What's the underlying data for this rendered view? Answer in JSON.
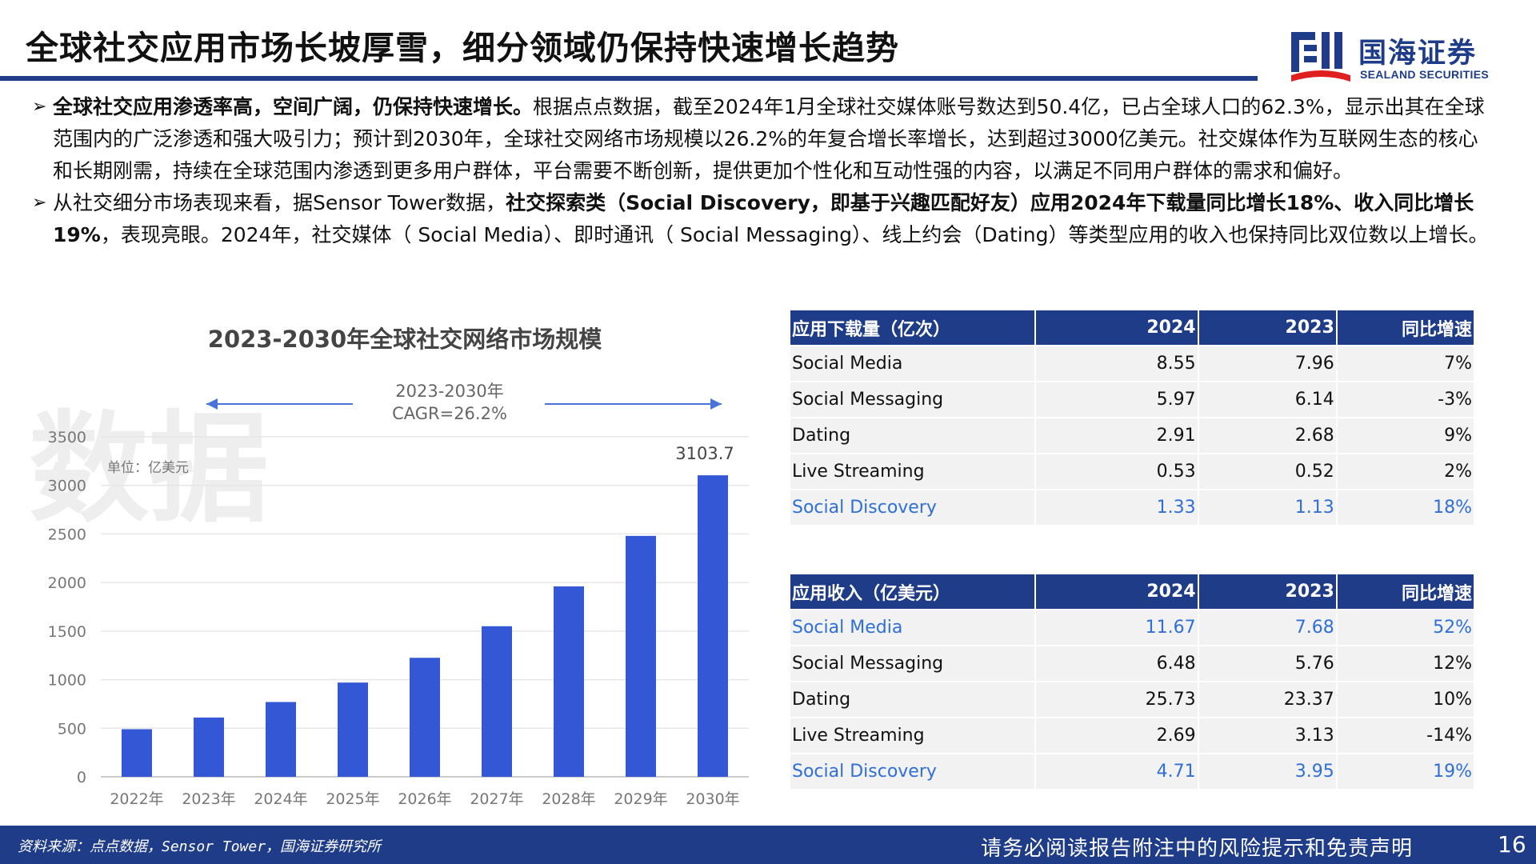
{
  "header": {
    "title": "全球社交应用市场长坡厚雪，细分领域仍保持快速增长趋势",
    "logo_cn": "国海证券",
    "logo_en": "SEALAND SECURITIES",
    "brand_color": "#1f3c88"
  },
  "bullets": [
    {
      "lead": "全球社交应用渗透率高，空间广阔，仍保持快速增长。",
      "text1": "根据点点数据，截至2024年1月全球社交媒体账号数达到50.4亿，已占全球人口的62.3%，显示出其在全球范围内的广泛渗透和强大吸引力；预计到2030年，全球社交网络市场规模以26.2%的年复合增长率增长，达到超过3000亿美元。社交媒体作为互联网生态的核心和长期刚需，持续在全球范围内渗透到更多用户群体，平台需要不断创新，提供更加个性化和互动性强的内容，以满足不同用户群体的需求和偏好。"
    },
    {
      "pre": "从社交细分市场表现来看，据Sensor Tower数据，",
      "bold": "社交探索类（Social Discovery，即基于兴趣匹配好友）应用2024年下载量同比增长18%、收入同比增长19%",
      "post": "，表现亮眼。2024年，社交媒体（ Social Media）、即时通讯（ Social Messaging）、线上约会（Dating）等类型应用的收入也保持同比双位数以上增长。"
    }
  ],
  "chart_data": {
    "type": "bar",
    "title": "2023-2030年全球社交网络市场规模",
    "unit_label": "单位：亿美元",
    "watermark": "数据",
    "cagr_period": "2023-2030年",
    "cagr_label": "CAGR=26.2%",
    "categories": [
      "2022年",
      "2023年",
      "2024年",
      "2025年",
      "2026年",
      "2027年",
      "2028年",
      "2029年",
      "2030年"
    ],
    "values": [
      490,
      610,
      770,
      970,
      1225,
      1550,
      1960,
      2480,
      3103.7
    ],
    "data_labels": {
      "8": "3103.7"
    },
    "yticks": [
      0,
      500,
      1000,
      1500,
      2000,
      2500,
      3000,
      3500
    ],
    "ylim": [
      0,
      3500
    ],
    "bar_color": "#3457d5",
    "grid": true
  },
  "table_downloads": {
    "headers": [
      "应用下载量（亿次）",
      "2024",
      "2023",
      "同比增速"
    ],
    "rows": [
      {
        "name": "Social Media",
        "v2024": "8.55",
        "v2023": "7.96",
        "yoy": "7%",
        "highlight": false
      },
      {
        "name": "Social Messaging",
        "v2024": "5.97",
        "v2023": "6.14",
        "yoy": "-3%",
        "highlight": false
      },
      {
        "name": "Dating",
        "v2024": "2.91",
        "v2023": "2.68",
        "yoy": "9%",
        "highlight": false
      },
      {
        "name": "Live Streaming",
        "v2024": "0.53",
        "v2023": "0.52",
        "yoy": "2%",
        "highlight": false
      },
      {
        "name": "Social Discovery",
        "v2024": "1.33",
        "v2023": "1.13",
        "yoy": "18%",
        "highlight": true
      }
    ]
  },
  "table_revenue": {
    "headers": [
      "应用收入（亿美元）",
      "2024",
      "2023",
      "同比增速"
    ],
    "rows": [
      {
        "name": "Social Media",
        "v2024": "11.67",
        "v2023": "7.68",
        "yoy": "52%",
        "highlight": true
      },
      {
        "name": "Social Messaging",
        "v2024": "6.48",
        "v2023": "5.76",
        "yoy": "12%",
        "highlight": false
      },
      {
        "name": "Dating",
        "v2024": "25.73",
        "v2023": "23.37",
        "yoy": "10%",
        "highlight": false
      },
      {
        "name": "Live Streaming",
        "v2024": "2.69",
        "v2023": "3.13",
        "yoy": "-14%",
        "highlight": false
      },
      {
        "name": "Social Discovery",
        "v2024": "4.71",
        "v2023": "3.95",
        "yoy": "19%",
        "highlight": true
      }
    ]
  },
  "footer": {
    "source": "资料来源：点点数据，Sensor Tower，国海证券研究所",
    "disclaimer": "请务必阅读报告附注中的风险提示和免责声明",
    "page_number": "16"
  }
}
